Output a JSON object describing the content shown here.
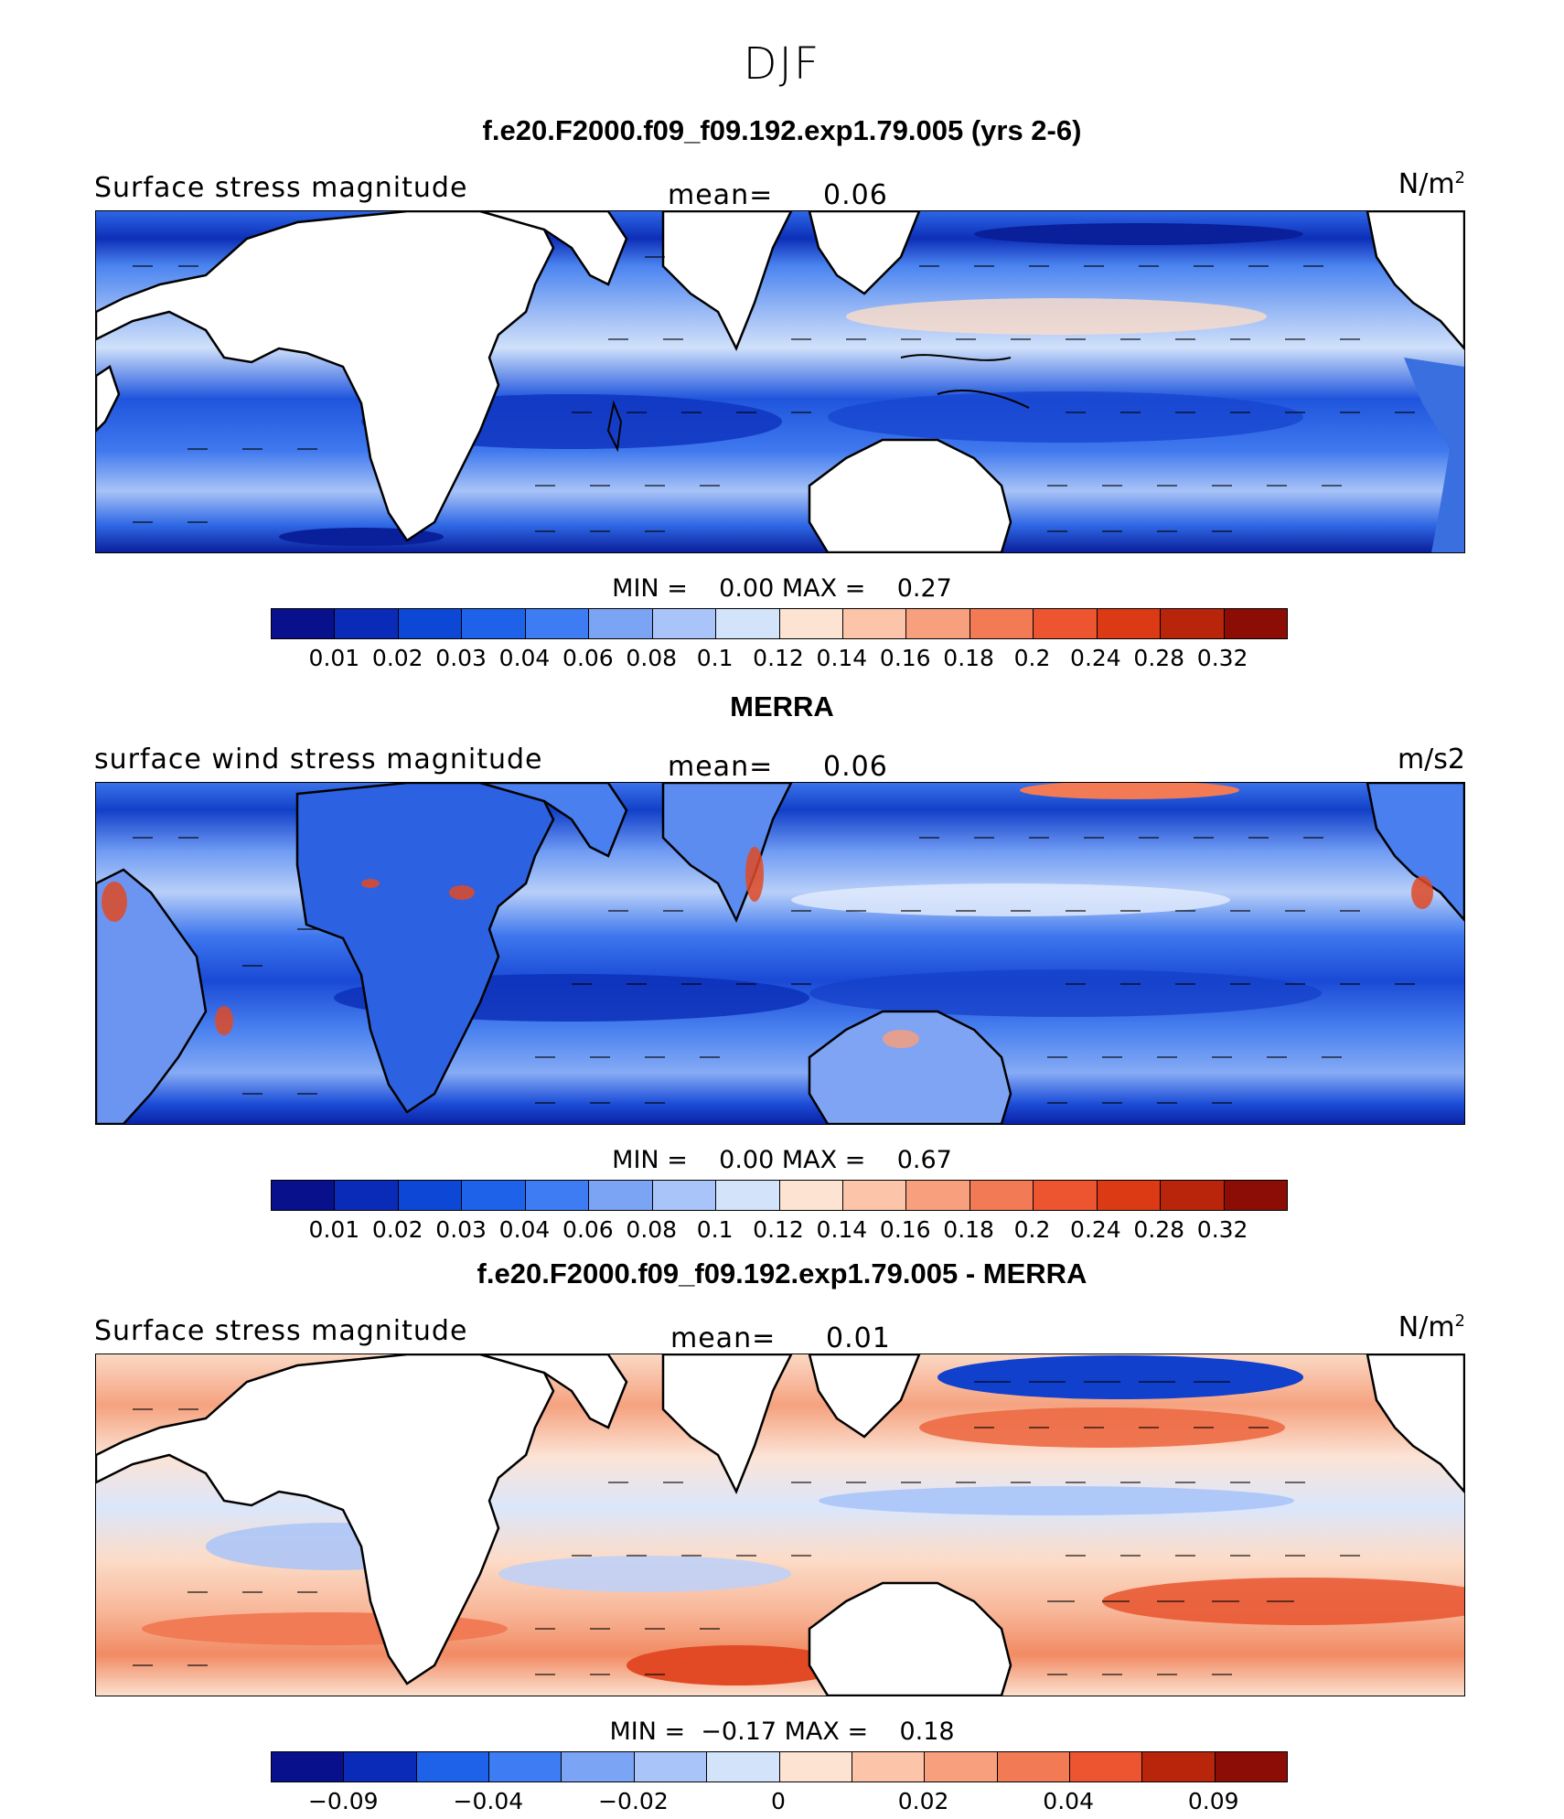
{
  "season": "DJF",
  "colorbar": {
    "colors": [
      "#08108c",
      "#0a2bb8",
      "#0d47d6",
      "#1f62ea",
      "#3d7cf2",
      "#7ba4f5",
      "#a9c4f8",
      "#d3e3fa",
      "#fde3d2",
      "#fcc4a8",
      "#f8a07e",
      "#f27a55",
      "#ec5530",
      "#dc3a14",
      "#b9250b",
      "#8c0d05"
    ]
  },
  "panels": [
    {
      "id": "model",
      "title": "f.e20.F2000.f09_f09.192.exp1.79.005 (yrs 2-6)",
      "left_label": "Surface stress magnitude",
      "mean_label": "mean=",
      "mean_value": "0.06",
      "unit_main": "N/m",
      "unit_sup": "2",
      "min_label": "MIN =",
      "min_value": "0.00",
      "max_label": "MAX =",
      "max_value": "0.27",
      "ticks": [
        "0.01",
        "0.02",
        "0.03",
        "0.04",
        "0.06",
        "0.08",
        "0.1",
        "0.12",
        "0.14",
        "0.16",
        "0.18",
        "0.2",
        "0.24",
        "0.28",
        "0.32"
      ]
    },
    {
      "id": "obs",
      "title": "MERRA",
      "left_label": "surface wind stress magnitude",
      "mean_label": "mean=",
      "mean_value": "0.06",
      "unit_main": "m/s2",
      "unit_sup": "",
      "min_label": "MIN =",
      "min_value": "0.00",
      "max_label": "MAX =",
      "max_value": "0.67",
      "ticks": [
        "0.01",
        "0.02",
        "0.03",
        "0.04",
        "0.06",
        "0.08",
        "0.1",
        "0.12",
        "0.14",
        "0.16",
        "0.18",
        "0.2",
        "0.24",
        "0.28",
        "0.32"
      ]
    },
    {
      "id": "diff",
      "title": "f.e20.F2000.f09_f09.192.exp1.79.005 - MERRA",
      "left_label": "Surface stress magnitude",
      "mean_label": "mean=",
      "mean_value": "0.01",
      "unit_main": "N/m",
      "unit_sup": "2",
      "min_label": "MIN =",
      "min_value": "−0.17",
      "max_label": "MAX =",
      "max_value": "0.18",
      "ticks": [
        "−0.09",
        "",
        "−0.04",
        "",
        "−0.02",
        "",
        "0",
        "",
        "0.02",
        "",
        "0.04",
        "",
        "0.09"
      ]
    }
  ]
}
